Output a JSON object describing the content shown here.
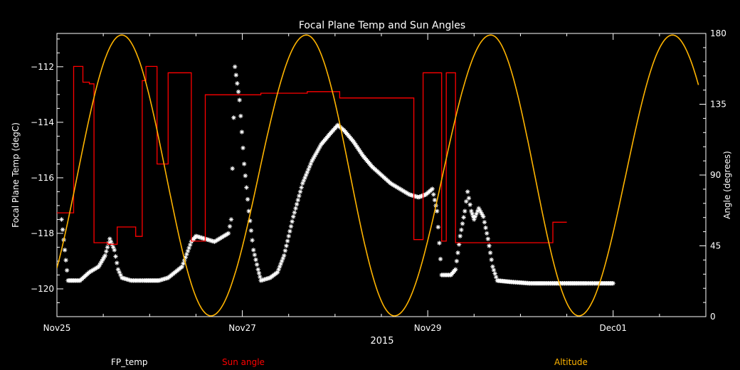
{
  "chart_data": {
    "type": "line",
    "title": "Focal Plane Temp and Sun Angles",
    "xlabel": "2015",
    "ylabel_left": "Focal Plane Temp (degC)",
    "ylabel_right": "Angle (degrees)",
    "x_unit": "days since Nov25 00:00",
    "xlim": [
      0,
      7
    ],
    "ylim_left": [
      -121,
      -110.8
    ],
    "ylim_right": [
      0,
      180
    ],
    "x_ticks": [
      {
        "label": "Nov25",
        "x": 0
      },
      {
        "label": "Nov27",
        "x": 2
      },
      {
        "label": "Nov29",
        "x": 4
      },
      {
        "label": "Dec01",
        "x": 6
      }
    ],
    "y_ticks_left": [
      -112,
      -114,
      -116,
      -118,
      -120
    ],
    "y_ticks_right": [
      0,
      45,
      90,
      135,
      180
    ],
    "colors": {
      "fp_temp": "#ffffff",
      "sun_angle": "#ff0000",
      "altitude": "#ffb400",
      "axes": "#ffffff"
    },
    "series": [
      {
        "name": "FP_temp",
        "axis": "left",
        "style": "asterisk",
        "points": [
          [
            0.05,
            -117.5
          ],
          [
            0.12,
            -119.7
          ],
          [
            0.25,
            -119.7
          ],
          [
            0.35,
            -119.4
          ],
          [
            0.45,
            -119.2
          ],
          [
            0.52,
            -118.8
          ],
          [
            0.57,
            -118.2
          ],
          [
            0.62,
            -118.6
          ],
          [
            0.66,
            -119.3
          ],
          [
            0.7,
            -119.6
          ],
          [
            0.8,
            -119.7
          ],
          [
            0.95,
            -119.7
          ],
          [
            1.1,
            -119.7
          ],
          [
            1.2,
            -119.6
          ],
          [
            1.35,
            -119.2
          ],
          [
            1.45,
            -118.3
          ],
          [
            1.5,
            -118.1
          ],
          [
            1.6,
            -118.2
          ],
          [
            1.7,
            -118.3
          ],
          [
            1.8,
            -118.1
          ],
          [
            1.85,
            -118.0
          ],
          [
            1.88,
            -117.5
          ],
          [
            1.92,
            -112.0
          ],
          [
            1.97,
            -113.2
          ],
          [
            2.02,
            -115.5
          ],
          [
            2.07,
            -117.2
          ],
          [
            2.12,
            -118.6
          ],
          [
            2.17,
            -119.3
          ],
          [
            2.2,
            -119.7
          ],
          [
            2.3,
            -119.6
          ],
          [
            2.38,
            -119.4
          ],
          [
            2.45,
            -118.8
          ],
          [
            2.55,
            -117.4
          ],
          [
            2.65,
            -116.2
          ],
          [
            2.75,
            -115.4
          ],
          [
            2.85,
            -114.8
          ],
          [
            2.95,
            -114.4
          ],
          [
            3.03,
            -114.1
          ],
          [
            3.1,
            -114.3
          ],
          [
            3.2,
            -114.7
          ],
          [
            3.3,
            -115.2
          ],
          [
            3.4,
            -115.6
          ],
          [
            3.5,
            -115.9
          ],
          [
            3.6,
            -116.2
          ],
          [
            3.7,
            -116.4
          ],
          [
            3.8,
            -116.6
          ],
          [
            3.9,
            -116.7
          ],
          [
            3.98,
            -116.6
          ],
          [
            4.05,
            -116.4
          ],
          [
            4.1,
            -117.2
          ],
          [
            4.15,
            -119.5
          ],
          [
            4.25,
            -119.5
          ],
          [
            4.3,
            -119.3
          ],
          [
            4.35,
            -118.1
          ],
          [
            4.4,
            -117.2
          ],
          [
            4.43,
            -116.5
          ],
          [
            4.47,
            -117.2
          ],
          [
            4.5,
            -117.5
          ],
          [
            4.55,
            -117.1
          ],
          [
            4.6,
            -117.4
          ],
          [
            4.65,
            -118.2
          ],
          [
            4.7,
            -119.2
          ],
          [
            4.75,
            -119.7
          ],
          [
            4.9,
            -119.75
          ],
          [
            5.1,
            -119.8
          ],
          [
            5.3,
            -119.8
          ],
          [
            5.5,
            -119.8
          ],
          [
            5.7,
            -119.8
          ],
          [
            5.85,
            -119.8
          ],
          [
            6.0,
            -119.8
          ]
        ]
      },
      {
        "name": "Sun angle",
        "axis": "right",
        "style": "step",
        "points": [
          [
            0.0,
            66
          ],
          [
            0.18,
            66
          ],
          [
            0.18,
            159
          ],
          [
            0.28,
            159
          ],
          [
            0.28,
            149
          ],
          [
            0.35,
            149
          ],
          [
            0.35,
            148
          ],
          [
            0.4,
            148
          ],
          [
            0.4,
            47
          ],
          [
            0.55,
            47
          ],
          [
            0.55,
            46
          ],
          [
            0.65,
            46
          ],
          [
            0.65,
            57
          ],
          [
            0.85,
            57
          ],
          [
            0.85,
            51
          ],
          [
            0.92,
            51
          ],
          [
            0.92,
            150
          ],
          [
            0.96,
            150
          ],
          [
            0.96,
            159
          ],
          [
            1.08,
            159
          ],
          [
            1.08,
            97
          ],
          [
            1.2,
            97
          ],
          [
            1.2,
            155
          ],
          [
            1.45,
            155
          ],
          [
            1.45,
            48
          ],
          [
            1.6,
            48
          ],
          [
            1.6,
            141
          ],
          [
            2.2,
            141
          ],
          [
            2.2,
            142
          ],
          [
            2.7,
            142
          ],
          [
            2.7,
            143
          ],
          [
            3.05,
            143
          ],
          [
            3.05,
            139
          ],
          [
            3.85,
            139
          ],
          [
            3.85,
            49
          ],
          [
            3.95,
            49
          ],
          [
            3.95,
            155
          ],
          [
            4.15,
            155
          ],
          [
            4.15,
            48
          ],
          [
            4.2,
            48
          ],
          [
            4.2,
            155
          ],
          [
            4.3,
            155
          ],
          [
            4.3,
            47
          ],
          [
            5.35,
            47
          ],
          [
            5.35,
            60
          ],
          [
            5.5,
            60
          ]
        ]
      },
      {
        "name": "Altitude",
        "axis": "right",
        "style": "line",
        "peaks": [
          0.7,
          2.69,
          4.68,
          6.64
        ],
        "troughs": [
          1.66,
          3.64,
          5.63
        ],
        "max": 179,
        "min": 0.5,
        "x_range": [
          0.0,
          6.92
        ]
      }
    ]
  },
  "legend": {
    "fp_temp": "FP_temp",
    "sun_angle": "Sun angle",
    "altitude": "Altitude"
  }
}
